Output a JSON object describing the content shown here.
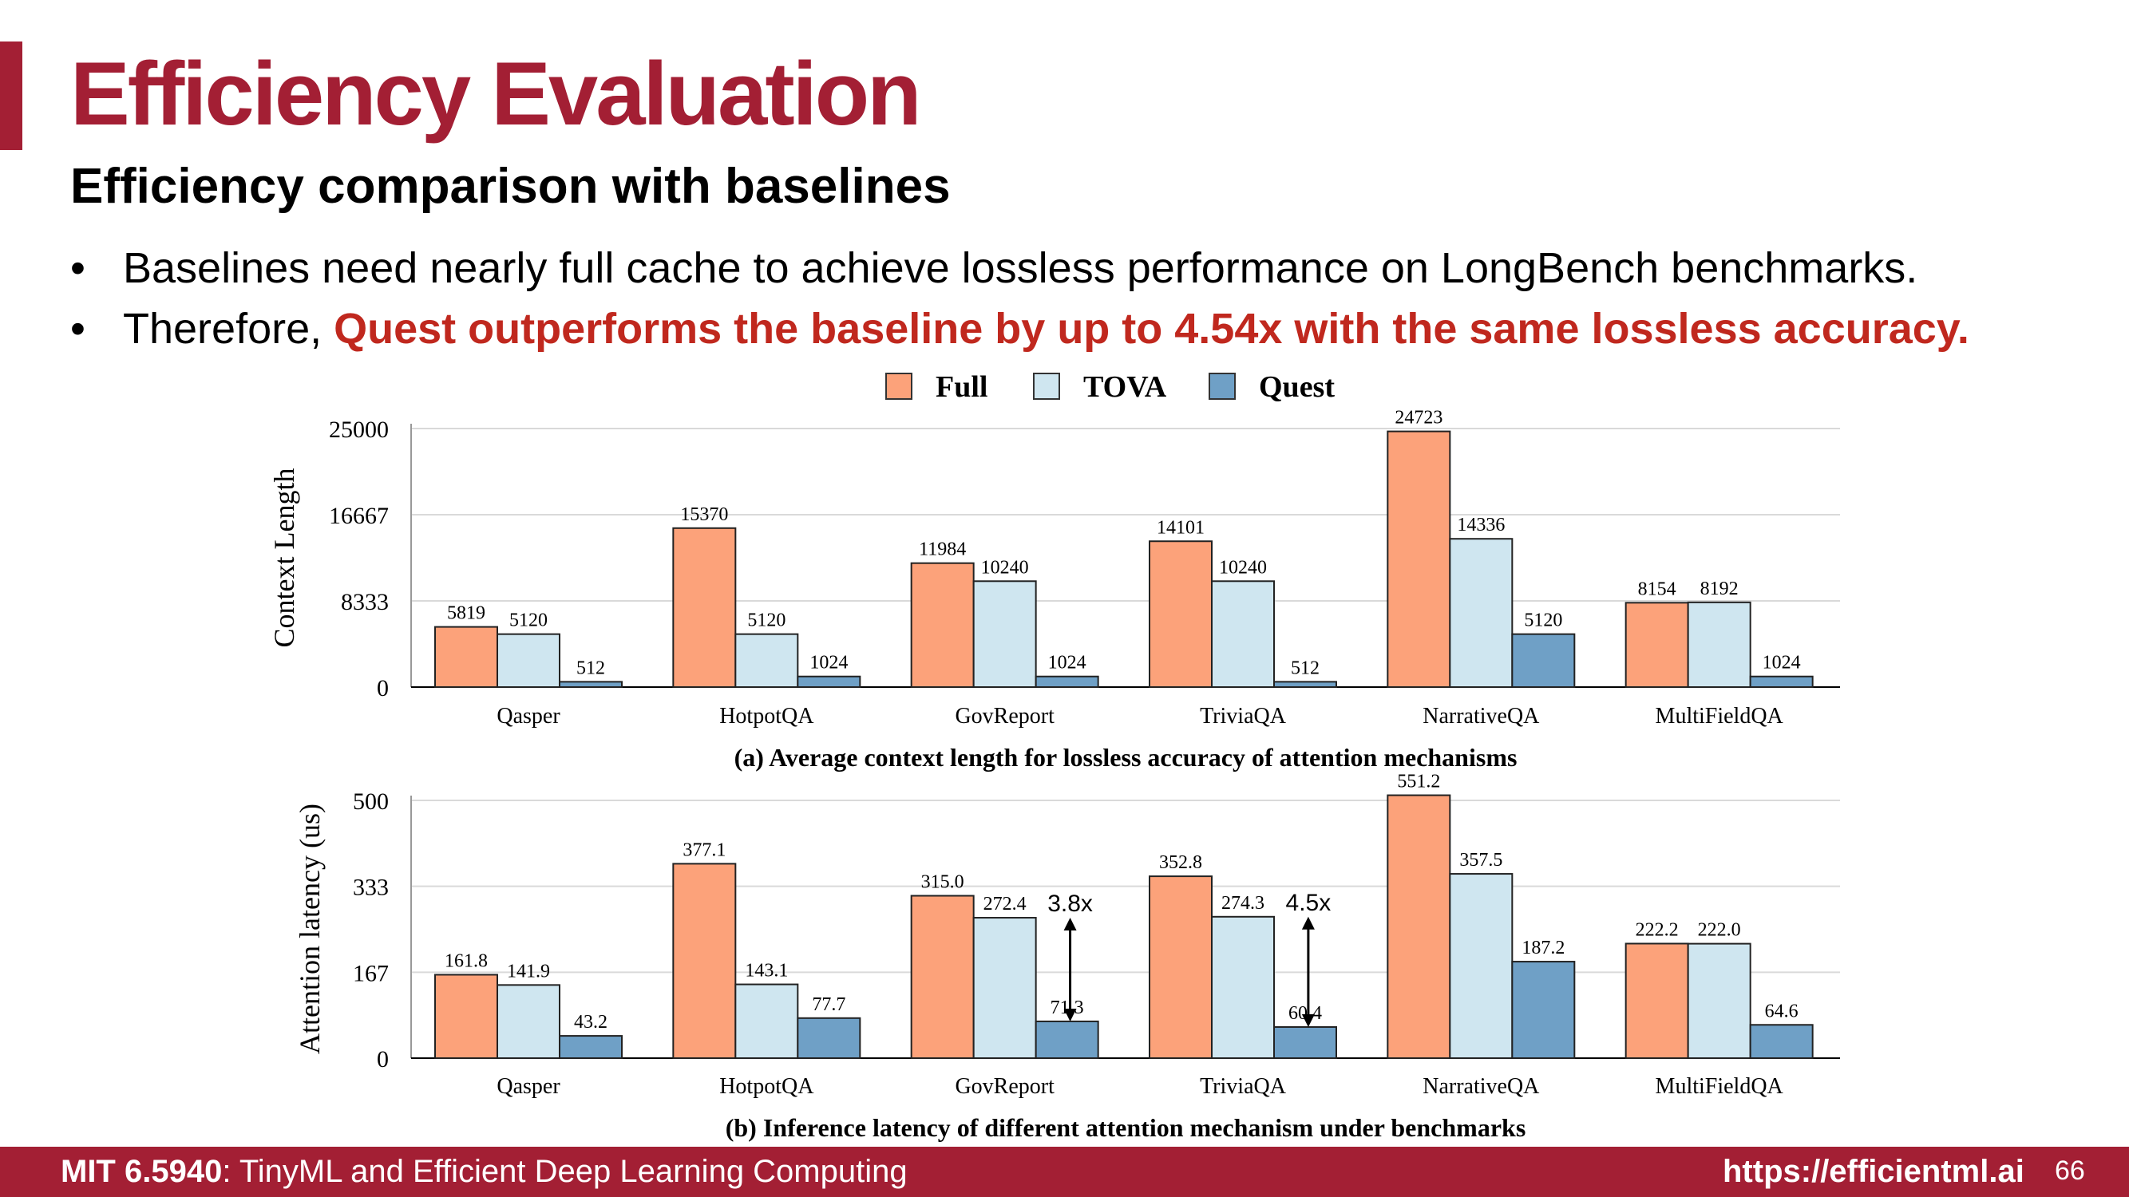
{
  "slide": {
    "title": "Efficiency Evaluation",
    "subtitle": "Efficiency comparison with baselines",
    "bullets": [
      {
        "bullet": "•",
        "text": "Baselines need nearly full cache to achieve lossless performance on LongBench benchmarks."
      },
      {
        "bullet": "•",
        "prefix": "Therefore, ",
        "highlight": "Quest outperforms the baseline by up to 4.54x with the same lossless accuracy",
        "suffix": "."
      }
    ]
  },
  "footer": {
    "course_code": "MIT 6.5940",
    "course_name": ": TinyML and Efficient Deep Learning Computing",
    "url": "https://efficientml.ai",
    "page_number": "66"
  },
  "colors": {
    "brand": "#a31f34",
    "highlight": "#c0281e",
    "full": "#fca27a",
    "tova": "#cfe6f0",
    "quest": "#6fa0c6"
  },
  "legend": [
    "Full",
    "TOVA",
    "Quest"
  ],
  "chart_data": [
    {
      "type": "bar",
      "caption": "(a) Average context length for lossless accuracy of attention mechanisms",
      "ylabel": "Context Length",
      "ylim": [
        0,
        25000
      ],
      "yticks": [
        "0",
        "8333",
        "16667",
        "25000"
      ],
      "categories": [
        "Qasper",
        "HotpotQA",
        "GovReport",
        "TriviaQA",
        "NarrativeQA",
        "MultiFieldQA"
      ],
      "series": [
        {
          "name": "Full",
          "values": [
            5819,
            15370,
            11984,
            14101,
            24723,
            8154
          ],
          "labels": [
            "5819",
            "15370",
            "11984",
            "14101",
            "24723",
            "8154"
          ]
        },
        {
          "name": "TOVA",
          "values": [
            5120,
            5120,
            10240,
            10240,
            14336,
            8192
          ],
          "labels": [
            "5120",
            "5120",
            "10240",
            "10240",
            "14336",
            "8192"
          ]
        },
        {
          "name": "Quest",
          "values": [
            512,
            1024,
            1024,
            512,
            5120,
            1024
          ],
          "labels": [
            "512",
            "1024",
            "1024",
            "512",
            "5120",
            "1024"
          ]
        }
      ],
      "grid": true,
      "legend_position": "top"
    },
    {
      "type": "bar",
      "caption": "(b) Inference latency of different attention mechanism under benchmarks",
      "ylabel": "Attention latency (us)",
      "ylim": [
        0,
        500
      ],
      "yticks": [
        "0",
        "167",
        "333",
        "500"
      ],
      "categories": [
        "Qasper",
        "HotpotQA",
        "GovReport",
        "TriviaQA",
        "NarrativeQA",
        "MultiFieldQA"
      ],
      "series": [
        {
          "name": "Full",
          "values": [
            161.8,
            377.1,
            315.0,
            352.8,
            551.2,
            222.2
          ],
          "labels": [
            "161.8",
            "377.1",
            "315.0",
            "352.8",
            "551.2",
            "222.2"
          ]
        },
        {
          "name": "TOVA",
          "values": [
            141.9,
            143.1,
            272.4,
            274.3,
            357.5,
            222.0
          ],
          "labels": [
            "141.9",
            "143.1",
            "272.4",
            "274.3",
            "357.5",
            "222.0"
          ]
        },
        {
          "name": "Quest",
          "values": [
            43.2,
            77.7,
            71.3,
            60.4,
            187.2,
            64.6
          ],
          "labels": [
            "43.2",
            "77.7",
            "71.3",
            "60.4",
            "187.2",
            "64.6"
          ]
        }
      ],
      "annotations": [
        {
          "category": "GovReport",
          "text": "3.8x",
          "from_value": 272.4,
          "to_value": 71.3
        },
        {
          "category": "TriviaQA",
          "text": "4.5x",
          "from_value": 274.3,
          "to_value": 60.4
        }
      ],
      "grid": true
    }
  ]
}
